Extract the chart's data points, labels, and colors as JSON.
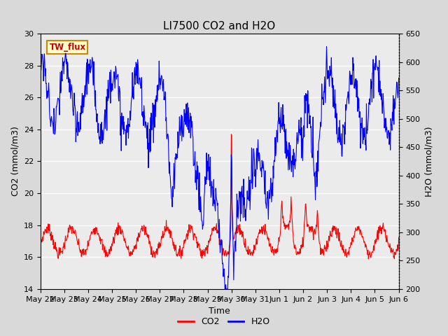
{
  "title": "LI7500 CO2 and H2O",
  "xlabel": "Time",
  "ylabel_left": "CO2 (mmol/m3)",
  "ylabel_right": "H2O (mmol/m3)",
  "ylim_left": [
    14,
    30
  ],
  "ylim_right": [
    200,
    650
  ],
  "yticks_left": [
    14,
    16,
    18,
    20,
    22,
    24,
    26,
    28,
    30
  ],
  "yticks_right": [
    200,
    250,
    300,
    350,
    400,
    450,
    500,
    550,
    600,
    650
  ],
  "xtick_labels": [
    "May 22",
    "May 23",
    "May 24",
    "May 25",
    "May 26",
    "May 27",
    "May 28",
    "May 29",
    "May 30",
    "May 31",
    "Jun 1",
    "Jun 2",
    "Jun 3",
    "Jun 4",
    "Jun 5",
    "Jun 6"
  ],
  "legend_label": "TW_flux",
  "legend_bg": "#ffffcc",
  "legend_border": "#cc8800",
  "co2_color": "#ff0000",
  "h2o_color": "#0000ff",
  "bg_color": "#d9d9d9",
  "plot_bg": "#ebebeb",
  "grid_color": "#ffffff",
  "title_fontsize": 11,
  "axis_label_fontsize": 9,
  "tick_fontsize": 8,
  "n_points": 900
}
